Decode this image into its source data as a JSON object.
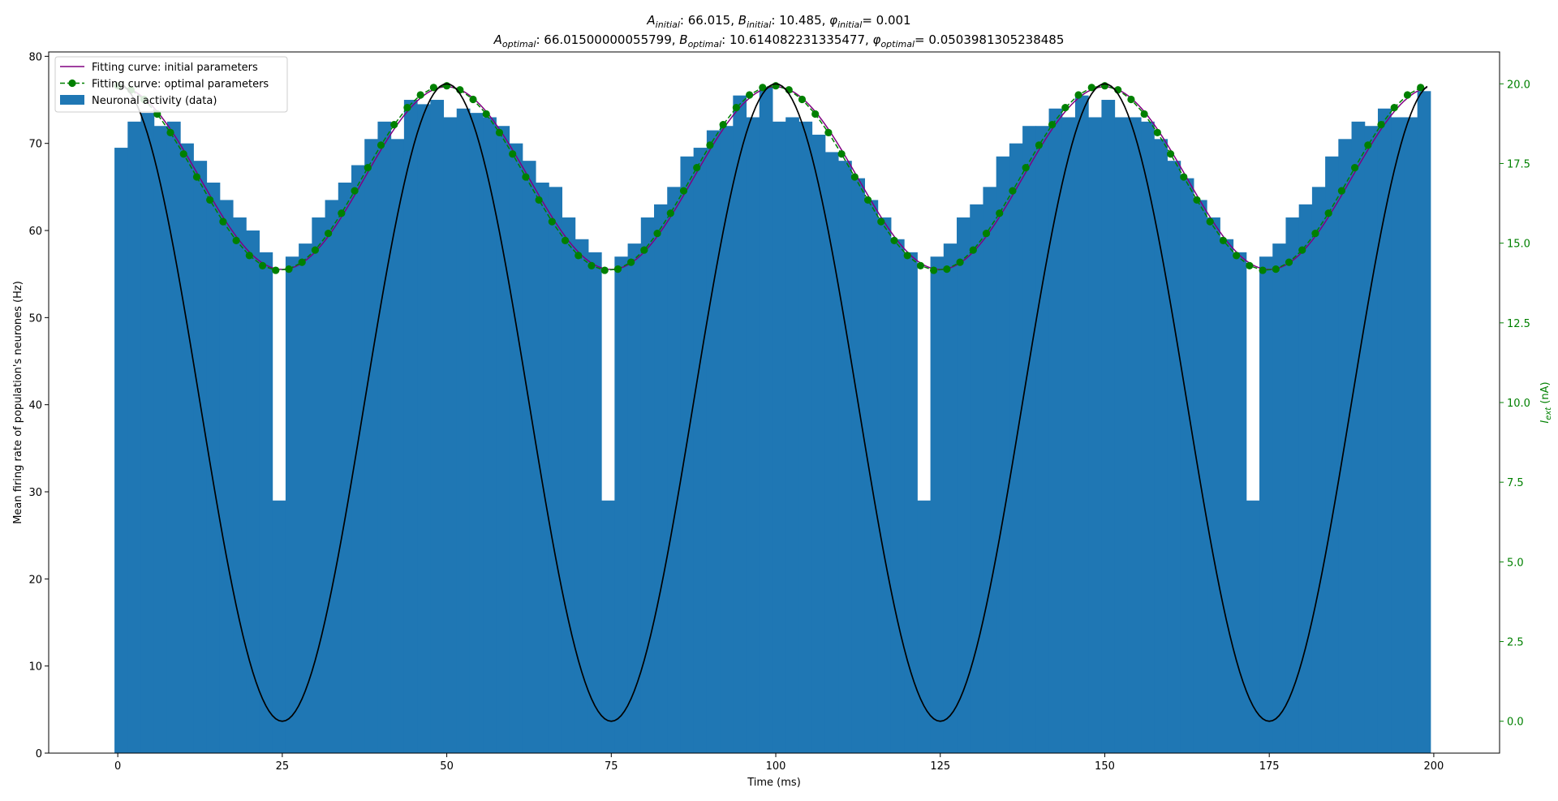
{
  "title": {
    "line1": [
      {
        "t": "A",
        "it": true
      },
      {
        "t": "initial",
        "sub": true,
        "it": true
      },
      {
        "t": ": 66.015, "
      },
      {
        "t": "B",
        "it": true
      },
      {
        "t": "initial",
        "sub": true,
        "it": true
      },
      {
        "t": ": 10.485, "
      },
      {
        "t": "φ",
        "it": true
      },
      {
        "t": "initial",
        "sub": true,
        "it": true
      },
      {
        "t": "= 0.001"
      }
    ],
    "line2": [
      {
        "t": "A",
        "it": true
      },
      {
        "t": "optimal",
        "sub": true,
        "it": true
      },
      {
        "t": ": 66.01500000055799, "
      },
      {
        "t": "B",
        "it": true
      },
      {
        "t": "optimal",
        "sub": true,
        "it": true
      },
      {
        "t": ": 10.614082231335477, "
      },
      {
        "t": "φ",
        "it": true
      },
      {
        "t": "optimal",
        "sub": true,
        "it": true
      },
      {
        "t": "= 0.0503981305238485"
      }
    ]
  },
  "chart_data": {
    "type": "bar",
    "xlabel": "Time (ms)",
    "ylabel": "Mean firing rate of population's neurones (Hz)",
    "y2label": {
      "main": "I",
      "sub": "ext",
      "unit": " (nA)"
    },
    "xlim": [
      -10.5,
      210
    ],
    "ylim": [
      0,
      80.5
    ],
    "y2lim": [
      -1.0,
      21.0
    ],
    "xticks": [
      0,
      25,
      50,
      75,
      100,
      125,
      150,
      175,
      200
    ],
    "yticks": [
      0,
      10,
      20,
      30,
      40,
      50,
      60,
      70,
      80
    ],
    "y2ticks": [
      "0.0",
      "2.5",
      "5.0",
      "7.5",
      "10.0",
      "12.5",
      "15.0",
      "17.5",
      "20.0"
    ],
    "grid": false,
    "legend_position": "upper-left",
    "legend": [
      {
        "label": "Fitting curve: initial parameters",
        "kind": "line",
        "color": "#800080"
      },
      {
        "label": "Fitting curve: optimal parameters",
        "kind": "dashed-marker",
        "color": "#008000"
      },
      {
        "label": "Neuronal activity (data)",
        "kind": "patch",
        "color": "#1f77b4"
      }
    ],
    "colors": {
      "bars": "#1f77b4",
      "initial": "#800080",
      "optimal": "#008000",
      "current": "#000000",
      "right_axis": "#008000"
    },
    "bar_width": 2,
    "histogram": {
      "name": "Neuronal activity (data)",
      "x_start": -0.5,
      "values": [
        69.5,
        72.5,
        73.5,
        72,
        72.5,
        70,
        68,
        65.5,
        63.5,
        61.5,
        60,
        57.5,
        29,
        57,
        58.5,
        61.5,
        63.5,
        65.5,
        67.5,
        70.5,
        72.5,
        70.5,
        75,
        74.5,
        75,
        73,
        74,
        73.5,
        73,
        72,
        70,
        68,
        65.5,
        65,
        61.5,
        59,
        57.5,
        29,
        57,
        58.5,
        61.5,
        63,
        65,
        68.5,
        69.5,
        71.5,
        72,
        75.5,
        73,
        76.5,
        72.5,
        73,
        72.5,
        71,
        69,
        68,
        66,
        63.5,
        61.5,
        59,
        57.5,
        29,
        57,
        58.5,
        61.5,
        63,
        65,
        68.5,
        70,
        72,
        72,
        74,
        73,
        75.5,
        73,
        75,
        73,
        73,
        72.5,
        70.5,
        68,
        66,
        63.5,
        61.5,
        59,
        57.5,
        29,
        57,
        58.5,
        61.5,
        63,
        65,
        68.5,
        70.5,
        72.5,
        72,
        74,
        73,
        73,
        76
      ]
    },
    "curves": {
      "initial": {
        "name": "Fitting curve: initial parameters",
        "A": 66.015,
        "B": 10.485,
        "phi": 0.001,
        "period": 50,
        "x_range": [
          0,
          199
        ]
      },
      "optimal": {
        "name": "Fitting curve: optimal parameters",
        "A": 66.01500000055799,
        "B": 10.614082231335477,
        "phi": 0.0503981305238485,
        "period": 50,
        "x_range": [
          0,
          199
        ],
        "marker_step": 2
      },
      "current": {
        "amplitude_nA": 10,
        "offset_nA": 10,
        "period": 50,
        "x_range": [
          0,
          199
        ],
        "axis": "right"
      }
    }
  }
}
